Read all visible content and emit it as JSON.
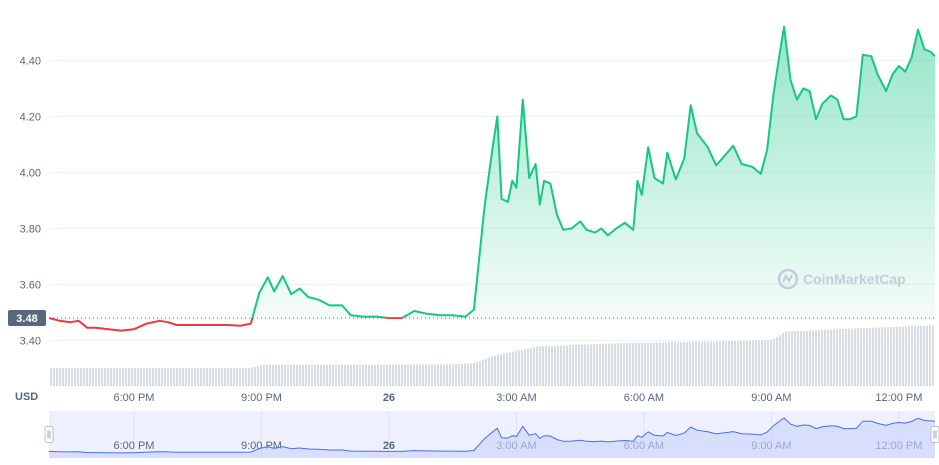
{
  "chart_data": {
    "type": "line",
    "currency_label": "USD",
    "reference_price": 3.48,
    "reference_label": "3.48",
    "watermark": "CoinMarketCap",
    "ylim": [
      3.23,
      4.58
    ],
    "y_ticks": [
      {
        "value": 3.4,
        "label": "3.40"
      },
      {
        "value": 3.6,
        "label": "3.60"
      },
      {
        "value": 3.8,
        "label": "3.80"
      },
      {
        "value": 4.0,
        "label": "4.00"
      },
      {
        "value": 4.2,
        "label": "4.20"
      },
      {
        "value": 4.4,
        "label": "4.40"
      }
    ],
    "x_range_hours": [
      0,
      20.85
    ],
    "x_ticks": [
      {
        "t": 2.0,
        "label": "6:00 PM",
        "bold": false
      },
      {
        "t": 5.0,
        "label": "9:00 PM",
        "bold": false
      },
      {
        "t": 8.0,
        "label": "26",
        "bold": true
      },
      {
        "t": 11.0,
        "label": "3:00 AM",
        "bold": false
      },
      {
        "t": 14.0,
        "label": "6:00 AM",
        "bold": false
      },
      {
        "t": 17.0,
        "label": "9:00 AM",
        "bold": false
      },
      {
        "t": 20.0,
        "label": "12:00 PM",
        "bold": false
      }
    ],
    "colors": {
      "up": "#16c784",
      "down": "#ea3943",
      "volume": "#d7dbe2",
      "navigator": "#4a6cf7"
    },
    "price_series": [
      [
        0.0,
        3.48
      ],
      [
        0.25,
        3.47
      ],
      [
        0.5,
        3.465
      ],
      [
        0.7,
        3.47
      ],
      [
        0.9,
        3.445
      ],
      [
        1.1,
        3.445
      ],
      [
        1.4,
        3.44
      ],
      [
        1.7,
        3.435
      ],
      [
        2.0,
        3.44
      ],
      [
        2.3,
        3.46
      ],
      [
        2.6,
        3.47
      ],
      [
        2.8,
        3.465
      ],
      [
        3.0,
        3.455
      ],
      [
        3.3,
        3.455
      ],
      [
        3.6,
        3.455
      ],
      [
        3.9,
        3.455
      ],
      [
        4.2,
        3.455
      ],
      [
        4.5,
        3.452
      ],
      [
        4.75,
        3.46
      ],
      [
        4.95,
        3.57
      ],
      [
        5.15,
        3.625
      ],
      [
        5.3,
        3.575
      ],
      [
        5.5,
        3.63
      ],
      [
        5.7,
        3.565
      ],
      [
        5.9,
        3.585
      ],
      [
        6.1,
        3.555
      ],
      [
        6.35,
        3.545
      ],
      [
        6.6,
        3.525
      ],
      [
        6.9,
        3.525
      ],
      [
        7.1,
        3.49
      ],
      [
        7.4,
        3.485
      ],
      [
        7.7,
        3.485
      ],
      [
        8.0,
        3.48
      ],
      [
        8.3,
        3.48
      ],
      [
        8.6,
        3.505
      ],
      [
        8.9,
        3.495
      ],
      [
        9.2,
        3.49
      ],
      [
        9.5,
        3.49
      ],
      [
        9.8,
        3.485
      ],
      [
        10.0,
        3.51
      ],
      [
        10.25,
        3.88
      ],
      [
        10.45,
        4.1
      ],
      [
        10.55,
        4.2
      ],
      [
        10.65,
        3.905
      ],
      [
        10.8,
        3.895
      ],
      [
        10.9,
        3.97
      ],
      [
        11.0,
        3.945
      ],
      [
        11.15,
        4.26
      ],
      [
        11.3,
        3.98
      ],
      [
        11.45,
        4.03
      ],
      [
        11.55,
        3.885
      ],
      [
        11.65,
        3.97
      ],
      [
        11.8,
        3.96
      ],
      [
        11.95,
        3.85
      ],
      [
        12.1,
        3.795
      ],
      [
        12.3,
        3.8
      ],
      [
        12.5,
        3.825
      ],
      [
        12.65,
        3.795
      ],
      [
        12.85,
        3.785
      ],
      [
        13.0,
        3.8
      ],
      [
        13.15,
        3.775
      ],
      [
        13.35,
        3.8
      ],
      [
        13.55,
        3.82
      ],
      [
        13.75,
        3.795
      ],
      [
        13.85,
        3.97
      ],
      [
        13.95,
        3.92
      ],
      [
        14.1,
        4.09
      ],
      [
        14.25,
        3.98
      ],
      [
        14.45,
        3.96
      ],
      [
        14.55,
        4.07
      ],
      [
        14.75,
        3.975
      ],
      [
        14.95,
        4.05
      ],
      [
        15.1,
        4.24
      ],
      [
        15.25,
        4.14
      ],
      [
        15.5,
        4.09
      ],
      [
        15.7,
        4.025
      ],
      [
        15.9,
        4.06
      ],
      [
        16.1,
        4.095
      ],
      [
        16.3,
        4.03
      ],
      [
        16.55,
        4.02
      ],
      [
        16.75,
        3.995
      ],
      [
        16.9,
        4.08
      ],
      [
        17.05,
        4.28
      ],
      [
        17.2,
        4.43
      ],
      [
        17.3,
        4.52
      ],
      [
        17.45,
        4.33
      ],
      [
        17.6,
        4.26
      ],
      [
        17.75,
        4.3
      ],
      [
        17.9,
        4.29
      ],
      [
        18.05,
        4.19
      ],
      [
        18.2,
        4.245
      ],
      [
        18.4,
        4.275
      ],
      [
        18.55,
        4.26
      ],
      [
        18.7,
        4.19
      ],
      [
        18.85,
        4.19
      ],
      [
        19.0,
        4.2
      ],
      [
        19.15,
        4.42
      ],
      [
        19.35,
        4.415
      ],
      [
        19.5,
        4.35
      ],
      [
        19.7,
        4.29
      ],
      [
        19.85,
        4.35
      ],
      [
        20.0,
        4.38
      ],
      [
        20.15,
        4.36
      ],
      [
        20.3,
        4.41
      ],
      [
        20.45,
        4.51
      ],
      [
        20.6,
        4.44
      ],
      [
        20.75,
        4.43
      ],
      [
        20.85,
        4.415
      ]
    ],
    "volume_profile": [
      [
        0.0,
        0.28
      ],
      [
        4.7,
        0.28
      ],
      [
        5.0,
        0.33
      ],
      [
        7.5,
        0.33
      ],
      [
        9.5,
        0.34
      ],
      [
        10.0,
        0.36
      ],
      [
        10.5,
        0.48
      ],
      [
        11.5,
        0.62
      ],
      [
        13.5,
        0.67
      ],
      [
        16.0,
        0.7
      ],
      [
        17.0,
        0.72
      ],
      [
        17.3,
        0.85
      ],
      [
        19.0,
        0.9
      ],
      [
        20.85,
        0.95
      ]
    ]
  }
}
